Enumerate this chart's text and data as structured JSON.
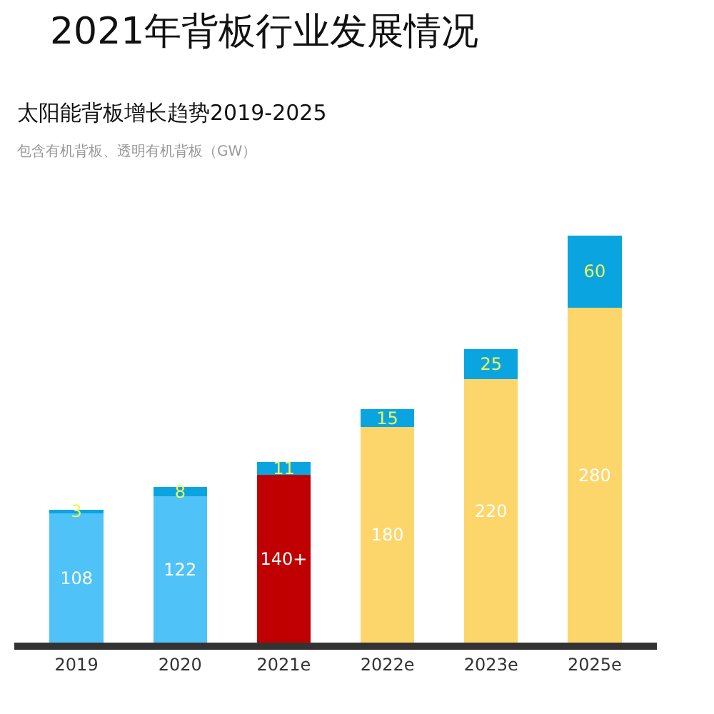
{
  "chart_data": {
    "type": "bar",
    "title": "2021年背板行业发展情况",
    "subtitle": "太阳能背板增长趋势2019-2025",
    "annotations": [
      "包含有机背板、透明有机背板（GW）"
    ],
    "categories": [
      "2019",
      "2020",
      "2021e",
      "2022e",
      "2023e",
      "2025e"
    ],
    "stacked": true,
    "data_labels": true,
    "series": [
      {
        "colors": [
          "#4fc3f7",
          "#4fc3f7",
          "#c00000",
          "#fdd66b",
          "#fdd66b",
          "#fdd66b"
        ],
        "values": [
          108,
          122,
          140,
          180,
          220,
          280
        ],
        "value_labels": [
          "108",
          "122",
          "140+",
          "180",
          "220",
          "280"
        ]
      },
      {
        "color": "#0aa5e0",
        "values": [
          3,
          8,
          11,
          15,
          25,
          60
        ]
      }
    ]
  }
}
